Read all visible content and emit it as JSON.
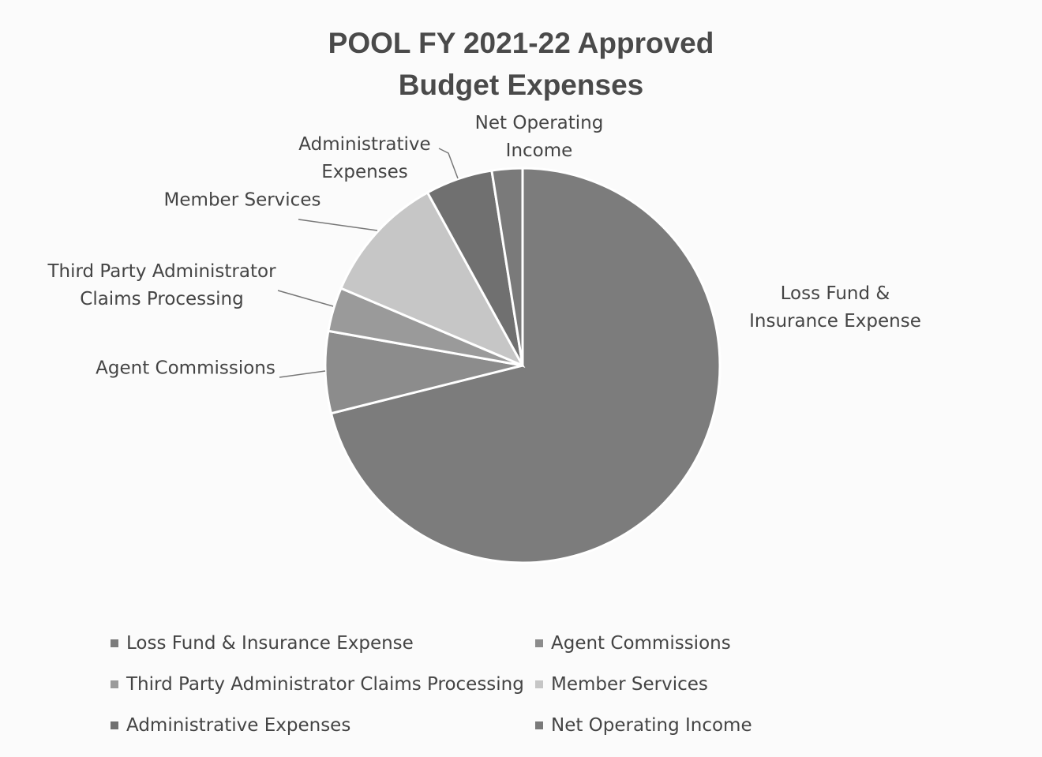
{
  "chart_data": {
    "type": "pie",
    "title": "POOL FY 2021-22 Approved Budget Expenses",
    "categories": [
      "Loss Fund & Insurance Expense",
      "Agent Commissions",
      "Third Party Administrator Claims Processing",
      "Member Services",
      "Administrative Expenses",
      "Net Operating Income"
    ],
    "values": [
      71.1,
      6.7,
      3.6,
      10.6,
      5.5,
      2.5
    ],
    "colors": [
      "#7c7c7c",
      "#8c8c8c",
      "#9a9a9a",
      "#c6c6c6",
      "#707070",
      "#7a7a7a"
    ],
    "legend": "bottom"
  }
}
